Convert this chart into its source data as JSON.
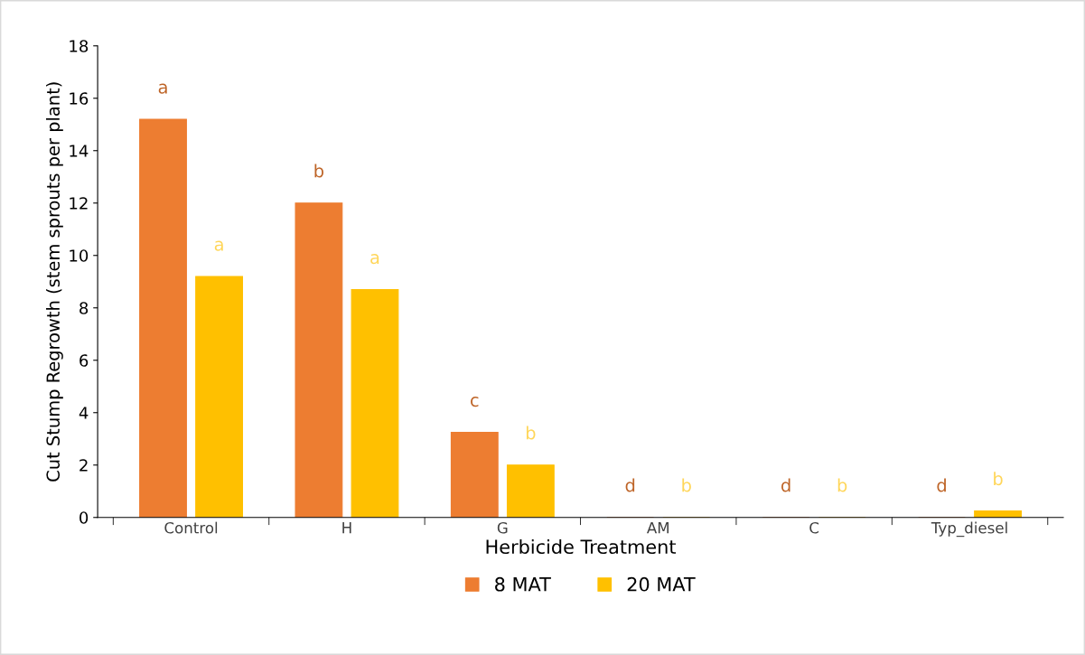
{
  "chart_data": {
    "type": "bar",
    "xlabel": "Herbicide Treatment",
    "ylabel": "Cut Stump Regrowth (stem sprouts per plant)",
    "categories": [
      "Control",
      "H",
      "G",
      "AM",
      "C",
      "Typ_diesel"
    ],
    "series": [
      {
        "name": "8 MAT",
        "color": "#ed7d31",
        "values": [
          15.2,
          12.0,
          3.25,
          0,
          0,
          0
        ],
        "value_labels": [
          "a",
          "b",
          "c",
          "d",
          "d",
          "d"
        ]
      },
      {
        "name": "20 MAT",
        "color": "#ffc000",
        "values": [
          9.2,
          8.7,
          2.0,
          0,
          0,
          0.25
        ],
        "value_labels": [
          "a",
          "a",
          "b",
          "b",
          "b",
          "b"
        ]
      }
    ],
    "ylim": [
      0,
      18
    ],
    "yticks": [
      0,
      2,
      4,
      6,
      8,
      10,
      12,
      14,
      16,
      18
    ],
    "grid": false,
    "legend": "bottom"
  }
}
